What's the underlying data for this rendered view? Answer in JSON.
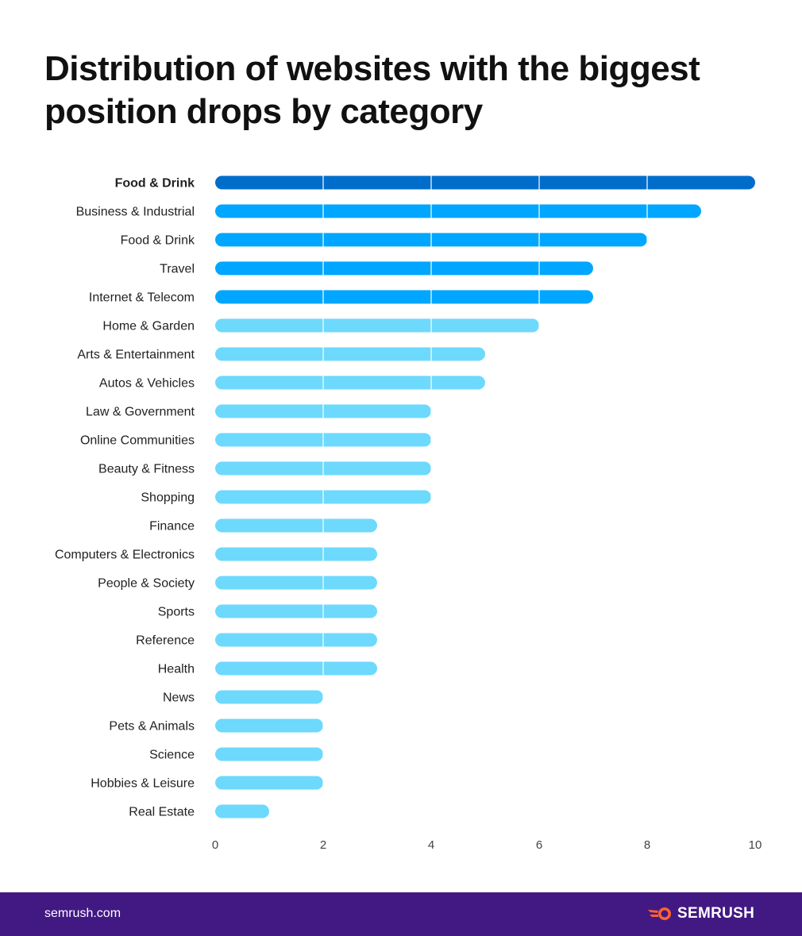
{
  "title": "Distribution of websites with the biggest position drops by category",
  "colors": {
    "highlight": "#006dca",
    "top": "#00a6ff",
    "rest": "#6dd9fd",
    "footer": "#421983",
    "logo_icon": "#ff642d"
  },
  "chart_data": {
    "type": "bar",
    "orientation": "horizontal",
    "title": "Distribution of websites with the biggest position drops by category",
    "categories": [
      "Food & Drink",
      "Business & Industrial",
      "Food & Drink",
      "Travel",
      "Internet & Telecom",
      "Home & Garden",
      "Arts & Entertainment",
      "Autos & Vehicles",
      "Law & Government",
      "Online Communities",
      "Beauty & Fitness",
      "Shopping",
      "Finance",
      "Computers & Electronics",
      "People & Society",
      "Sports",
      "Reference",
      "Health",
      "News",
      "Pets & Animals",
      "Science",
      "Hobbies & Leisure",
      "Real Estate"
    ],
    "values": [
      10,
      9,
      8,
      7,
      7,
      6,
      5,
      5,
      4,
      4,
      4,
      4,
      3,
      3,
      3,
      3,
      3,
      3,
      2,
      2,
      2,
      2,
      1
    ],
    "highlighted": [
      0
    ],
    "color_groups": [
      "highlight",
      "top",
      "top",
      "top",
      "top",
      "rest",
      "rest",
      "rest",
      "rest",
      "rest",
      "rest",
      "rest",
      "rest",
      "rest",
      "rest",
      "rest",
      "rest",
      "rest",
      "rest",
      "rest",
      "rest",
      "rest",
      "rest"
    ],
    "xlim": [
      0,
      10
    ],
    "xticks": [
      0,
      2,
      4,
      6,
      8,
      10
    ],
    "grid": true
  },
  "footer": {
    "site": "semrush.com",
    "brand": "SEMRUSH"
  }
}
